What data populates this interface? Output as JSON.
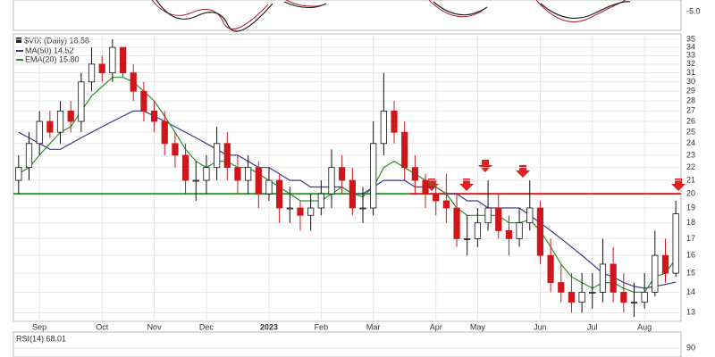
{
  "chart_data": {
    "type": "candlestick",
    "legend": {
      "symbol": "$VIX (Daily) 18.58",
      "ma": "MA(50) 14.52",
      "ema": "EMA(20) 15.80"
    },
    "categories": [
      null,
      null,
      "Sep",
      null,
      null,
      null,
      null,
      null,
      "Oct",
      null,
      null,
      null,
      null,
      "Nov",
      null,
      null,
      null,
      null,
      "Dec",
      null,
      null,
      null,
      null,
      null,
      "2023",
      null,
      null,
      null,
      null,
      "Feb",
      null,
      null,
      null,
      null,
      "Mar",
      null,
      null,
      null,
      null,
      null,
      "Apr",
      null,
      null,
      null,
      "May",
      null,
      null,
      null,
      null,
      null,
      "Jun",
      null,
      null,
      null,
      null,
      "Jul",
      null,
      null,
      null,
      null,
      "Aug",
      null,
      null,
      null
    ],
    "open": [
      21,
      22,
      24,
      26,
      25,
      27,
      26,
      30,
      32,
      31,
      34,
      31,
      29,
      27,
      26,
      24,
      23,
      21,
      21,
      22,
      24,
      22,
      21,
      22,
      20,
      21,
      19,
      19,
      18.5,
      19,
      20,
      22,
      21,
      19,
      19,
      24,
      27,
      25,
      22,
      21,
      20,
      19.5,
      19,
      17,
      17,
      18,
      19,
      17.5,
      17,
      18,
      19,
      16,
      14.5,
      14,
      13.5,
      14,
      14,
      15.5,
      14,
      13.5,
      13.5,
      14,
      16,
      15
    ],
    "high": [
      23,
      25,
      27,
      27,
      28,
      28,
      31,
      34,
      33,
      35,
      34,
      32,
      30,
      28,
      27,
      25,
      24,
      22.5,
      23,
      25.5,
      25,
      23,
      23,
      22.5,
      22,
      21.5,
      20.5,
      19.5,
      20,
      21,
      23.5,
      23,
      22,
      20.5,
      26,
      31,
      28,
      26,
      23,
      21.5,
      21,
      21.5,
      20,
      18.5,
      19,
      21,
      20,
      18.5,
      19,
      21,
      19.5,
      17,
      15.5,
      15,
      15,
      15,
      17,
      16.5,
      15,
      14.5,
      15,
      17.5,
      17,
      19.5
    ],
    "low": [
      20,
      21,
      23,
      24.5,
      24,
      25,
      25,
      29,
      30,
      30,
      30.5,
      28,
      26,
      25,
      23,
      22,
      20,
      19.5,
      20,
      21,
      21,
      20,
      20,
      19,
      19.5,
      18,
      18,
      17.5,
      17.5,
      18.5,
      19,
      20,
      18.5,
      18,
      18.5,
      23,
      24,
      21,
      20,
      19,
      18.5,
      18,
      16.5,
      16,
      16.5,
      17.5,
      17,
      16,
      16.5,
      17.5,
      15.5,
      14,
      13.5,
      13,
      13,
      13.2,
      13.5,
      13.5,
      13,
      12.8,
      13.2,
      13.8,
      14.5,
      14.8
    ],
    "close": [
      22,
      24,
      26,
      25,
      27,
      26,
      30,
      32,
      31,
      34,
      31,
      29,
      27,
      26,
      24,
      23,
      21,
      21,
      22,
      24,
      22,
      21,
      22,
      20,
      21,
      19,
      19,
      18.5,
      19,
      20,
      22,
      21,
      19,
      19,
      24,
      27,
      25,
      22,
      21,
      20,
      19.5,
      19,
      17,
      17,
      18,
      19,
      17.5,
      17,
      18,
      19,
      16,
      14.5,
      14,
      13.5,
      14,
      14,
      15.5,
      14,
      13.5,
      13.5,
      14,
      16,
      15,
      18.6
    ],
    "series": [
      {
        "name": "MA(50)",
        "color": "#3a3d8f",
        "values": [
          25,
          24.5,
          24,
          23.5,
          23.5,
          24,
          24.5,
          25,
          25.5,
          26,
          26.5,
          27,
          27,
          26.5,
          26,
          25.5,
          25,
          24.5,
          24,
          23.5,
          23,
          23,
          22.5,
          22,
          22,
          21.5,
          21,
          21,
          20.5,
          20.5,
          20.5,
          20.5,
          20,
          20,
          20.5,
          21,
          21,
          21,
          20.5,
          20.5,
          20.5,
          20,
          20,
          19.5,
          19.5,
          19,
          19,
          19,
          19,
          18.5,
          18,
          17.5,
          17,
          16.5,
          16,
          15.5,
          15,
          14.8,
          14.5,
          14.3,
          14.2,
          14.3,
          14.4,
          14.52
        ]
      },
      {
        "name": "EMA(20)",
        "color": "#2f8f2f",
        "values": [
          21.5,
          22,
          23,
          24,
          25,
          25.5,
          27,
          28.5,
          29.5,
          30.5,
          30.5,
          30,
          29,
          28,
          26.5,
          25,
          23.5,
          22.5,
          22,
          22.5,
          22.5,
          22,
          22,
          21.5,
          21,
          20.5,
          20,
          19.5,
          19.5,
          19.5,
          20,
          20.5,
          20,
          19.8,
          20.5,
          22,
          22.5,
          22,
          21.5,
          21,
          20.5,
          20,
          19,
          18.5,
          18.5,
          18.5,
          18.5,
          18,
          18,
          18.2,
          17.5,
          16.5,
          15.5,
          14.8,
          14.5,
          14.2,
          14.5,
          14.5,
          14.2,
          14,
          14,
          14.8,
          15,
          15.8
        ]
      }
    ],
    "levels": [
      {
        "value": 20,
        "color": "#2e9e2e"
      },
      {
        "value": 20,
        "color": "#e02020"
      }
    ],
    "log_scale": true,
    "grid": true,
    "ylim": [
      12.6,
      35.7
    ],
    "yticks": [
      13,
      14,
      15,
      16,
      17,
      18,
      19,
      20,
      21,
      22,
      23,
      24,
      25,
      26,
      27,
      28,
      29,
      30,
      31,
      32,
      33,
      34,
      35
    ],
    "top_panel_ticks": [
      {
        "value": -5,
        "label": "-5.0"
      }
    ],
    "rsi": {
      "label": "RSI(14) 68.01",
      "yticks": [
        90
      ]
    }
  }
}
